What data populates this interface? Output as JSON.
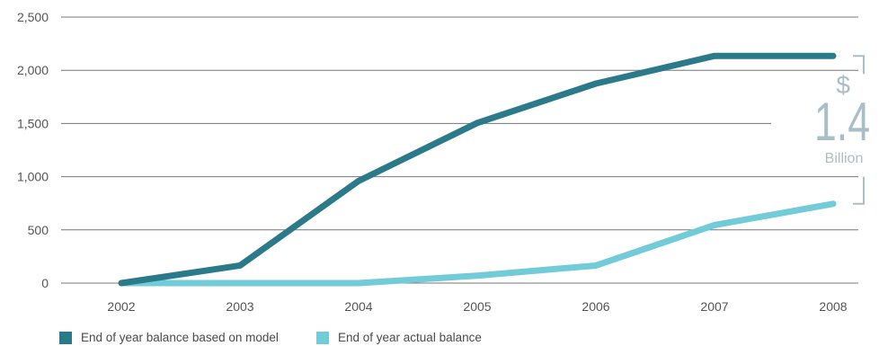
{
  "chart_data": {
    "type": "line",
    "title": "",
    "xlabel": "",
    "ylabel": "",
    "x": [
      "2002",
      "2003",
      "2004",
      "2005",
      "2006",
      "2007",
      "2008"
    ],
    "ylim": [
      0,
      2500
    ],
    "yticks": [
      "0",
      "500",
      "1,000",
      "1,500",
      "2,000",
      "2,500"
    ],
    "ytick_values": [
      0,
      500,
      1000,
      1500,
      2000,
      2500
    ],
    "grid": true,
    "legend_position": "bottom",
    "series": [
      {
        "name": "End of year balance based on model",
        "color": "#2b7a8a",
        "values": [
          0,
          165,
          960,
          1505,
          1875,
          2135,
          2135
        ]
      },
      {
        "name": "End of year actual balance",
        "color": "#72cbd8",
        "values": [
          0,
          0,
          0,
          70,
          165,
          545,
          745
        ]
      }
    ],
    "annotation": {
      "currency": "$",
      "amount": "1.4",
      "unit": "Billion",
      "color": "#a9bfc8"
    }
  }
}
